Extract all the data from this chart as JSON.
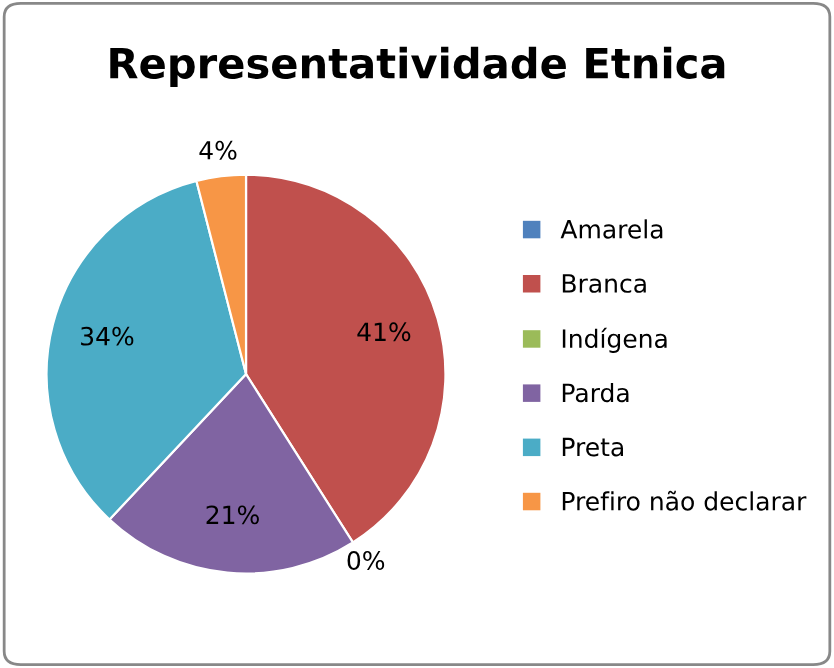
{
  "chart_data": {
    "type": "pie",
    "title": "Representatividade Etnica",
    "categories": [
      "Amarela",
      "Branca",
      "Indígena",
      "Parda",
      "Preta",
      "Prefiro não declarar"
    ],
    "values": [
      0,
      41,
      0,
      21,
      34,
      4
    ],
    "colors": [
      "#4f81bd",
      "#c0504d",
      "#9bbb59",
      "#8064a2",
      "#4bacc6",
      "#f79646"
    ],
    "value_labels": [
      null,
      "41%",
      "0%",
      "21%",
      "34%",
      "4%"
    ],
    "legend": "right"
  }
}
